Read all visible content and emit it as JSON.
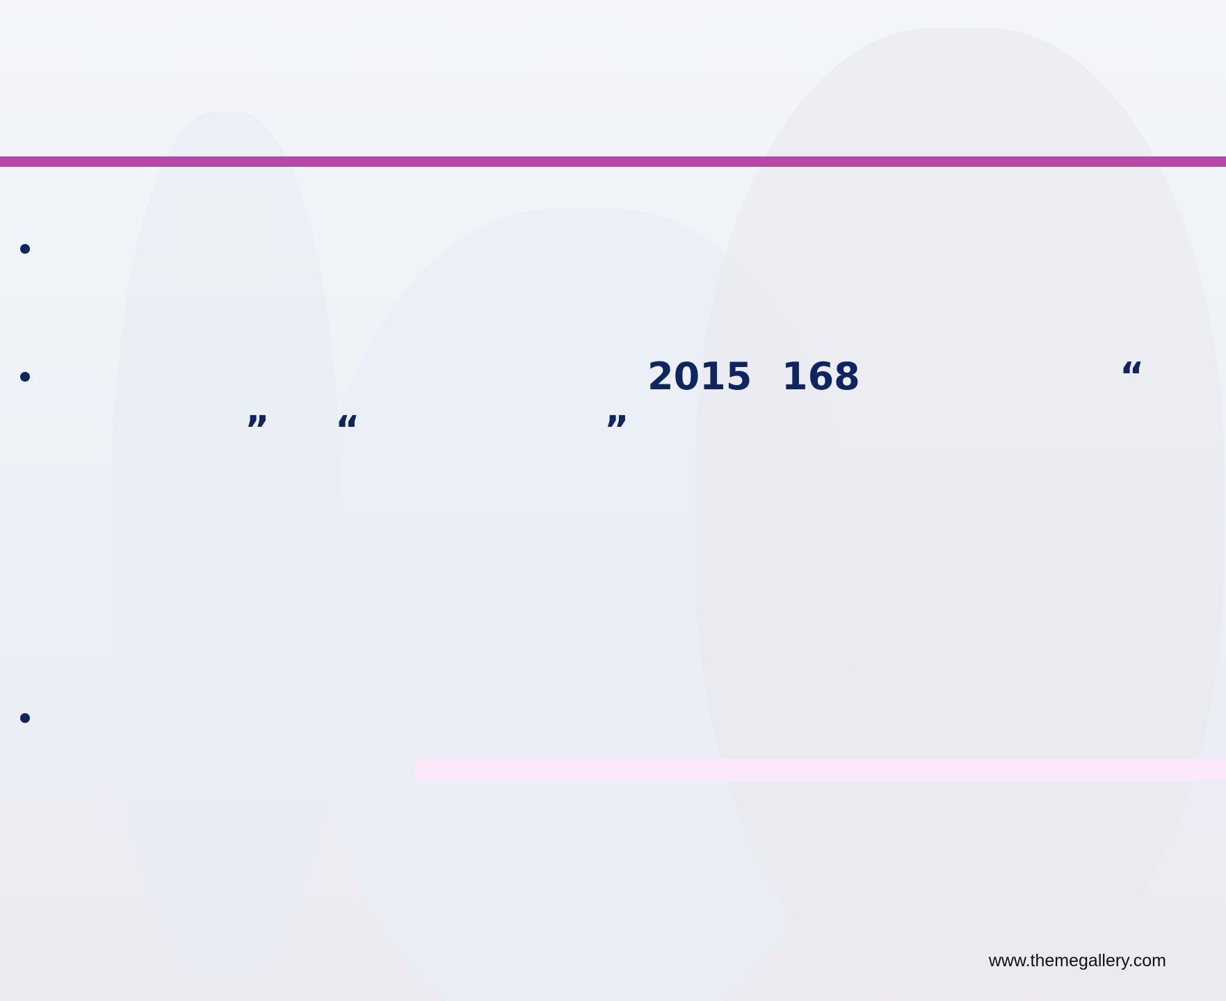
{
  "slide": {
    "line2": {
      "fragments": [
        "2015",
        "168",
        "“"
      ]
    },
    "line3": {
      "fragments": [
        "”",
        "“",
        "”"
      ]
    },
    "footer": "www.themegallery.com"
  }
}
